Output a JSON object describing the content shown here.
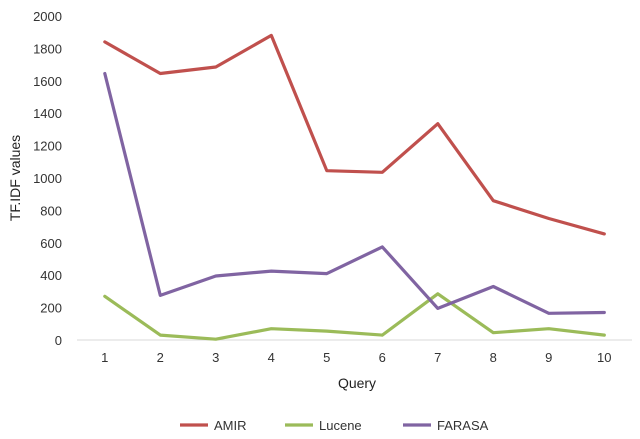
{
  "chart_data": {
    "type": "line",
    "title": "",
    "xlabel": "Query",
    "ylabel": "TF.IDF values",
    "x": [
      1,
      2,
      3,
      4,
      5,
      6,
      7,
      8,
      9,
      10
    ],
    "ylim": [
      0,
      2000
    ],
    "yticks": [
      0,
      200,
      400,
      600,
      800,
      1000,
      1200,
      1400,
      1600,
      1800,
      2000
    ],
    "grid": false,
    "legend_position": "bottom",
    "series": [
      {
        "name": "AMIR",
        "color": "#c0504d",
        "values": [
          1840,
          1645,
          1685,
          1880,
          1045,
          1035,
          1335,
          860,
          750,
          655
        ]
      },
      {
        "name": "Lucene",
        "color": "#9bbb59",
        "values": [
          270,
          30,
          5,
          70,
          55,
          30,
          285,
          45,
          70,
          30
        ]
      },
      {
        "name": "FARASA",
        "color": "#8064a2",
        "values": [
          1645,
          275,
          395,
          425,
          410,
          575,
          195,
          330,
          165,
          170
        ]
      }
    ]
  }
}
